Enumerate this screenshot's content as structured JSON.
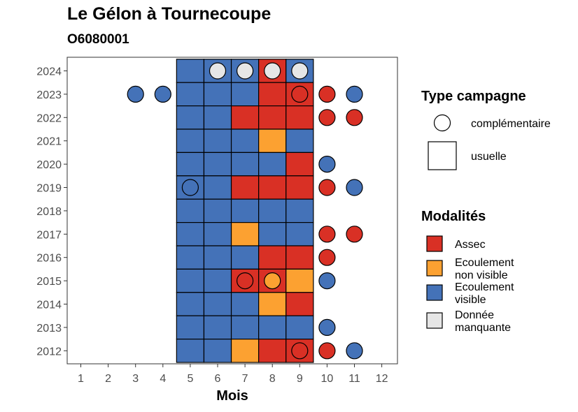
{
  "chart_data": {
    "type": "heatmap",
    "title": "Le Gélon à Tournecoupe",
    "subtitle": "O6080001",
    "xlabel": "Mois",
    "ylabel": "",
    "x_ticks": [
      "1",
      "2",
      "3",
      "4",
      "5",
      "6",
      "7",
      "8",
      "9",
      "10",
      "11",
      "12"
    ],
    "y_ticks": [
      "2024",
      "2023",
      "2022",
      "2021",
      "2020",
      "2019",
      "2018",
      "2017",
      "2016",
      "2015",
      "2014",
      "2013",
      "2012"
    ],
    "xlim": [
      1,
      12
    ],
    "ylim": [
      2012,
      2024
    ],
    "grid": false,
    "colors": {
      "Assec": "#d93025",
      "Ecoulement non visible": "#fca131",
      "Ecoulement visible": "#4472b8",
      "Donnée manquante": "#e6e6e6"
    },
    "cells": [
      {
        "year": 2024,
        "month": 5,
        "status": "Ecoulement visible"
      },
      {
        "year": 2024,
        "month": 6,
        "status": "Ecoulement visible"
      },
      {
        "year": 2024,
        "month": 7,
        "status": "Ecoulement visible"
      },
      {
        "year": 2024,
        "month": 8,
        "status": "Assec"
      },
      {
        "year": 2024,
        "month": 9,
        "status": "Ecoulement visible"
      },
      {
        "year": 2023,
        "month": 5,
        "status": "Ecoulement visible"
      },
      {
        "year": 2023,
        "month": 6,
        "status": "Ecoulement visible"
      },
      {
        "year": 2023,
        "month": 7,
        "status": "Ecoulement visible"
      },
      {
        "year": 2023,
        "month": 8,
        "status": "Assec"
      },
      {
        "year": 2023,
        "month": 9,
        "status": "Assec"
      },
      {
        "year": 2022,
        "month": 5,
        "status": "Ecoulement visible"
      },
      {
        "year": 2022,
        "month": 6,
        "status": "Ecoulement visible"
      },
      {
        "year": 2022,
        "month": 7,
        "status": "Assec"
      },
      {
        "year": 2022,
        "month": 8,
        "status": "Assec"
      },
      {
        "year": 2022,
        "month": 9,
        "status": "Assec"
      },
      {
        "year": 2021,
        "month": 5,
        "status": "Ecoulement visible"
      },
      {
        "year": 2021,
        "month": 6,
        "status": "Ecoulement visible"
      },
      {
        "year": 2021,
        "month": 7,
        "status": "Ecoulement visible"
      },
      {
        "year": 2021,
        "month": 8,
        "status": "Ecoulement non visible"
      },
      {
        "year": 2021,
        "month": 9,
        "status": "Ecoulement visible"
      },
      {
        "year": 2020,
        "month": 5,
        "status": "Ecoulement visible"
      },
      {
        "year": 2020,
        "month": 6,
        "status": "Ecoulement visible"
      },
      {
        "year": 2020,
        "month": 7,
        "status": "Ecoulement visible"
      },
      {
        "year": 2020,
        "month": 8,
        "status": "Ecoulement visible"
      },
      {
        "year": 2020,
        "month": 9,
        "status": "Assec"
      },
      {
        "year": 2019,
        "month": 5,
        "status": "Ecoulement visible"
      },
      {
        "year": 2019,
        "month": 6,
        "status": "Ecoulement visible"
      },
      {
        "year": 2019,
        "month": 7,
        "status": "Assec"
      },
      {
        "year": 2019,
        "month": 8,
        "status": "Assec"
      },
      {
        "year": 2019,
        "month": 9,
        "status": "Assec"
      },
      {
        "year": 2018,
        "month": 5,
        "status": "Ecoulement visible"
      },
      {
        "year": 2018,
        "month": 6,
        "status": "Ecoulement visible"
      },
      {
        "year": 2018,
        "month": 7,
        "status": "Ecoulement visible"
      },
      {
        "year": 2018,
        "month": 8,
        "status": "Ecoulement visible"
      },
      {
        "year": 2018,
        "month": 9,
        "status": "Ecoulement visible"
      },
      {
        "year": 2017,
        "month": 5,
        "status": "Ecoulement visible"
      },
      {
        "year": 2017,
        "month": 6,
        "status": "Ecoulement visible"
      },
      {
        "year": 2017,
        "month": 7,
        "status": "Ecoulement non visible"
      },
      {
        "year": 2017,
        "month": 8,
        "status": "Ecoulement visible"
      },
      {
        "year": 2017,
        "month": 9,
        "status": "Ecoulement visible"
      },
      {
        "year": 2016,
        "month": 5,
        "status": "Ecoulement visible"
      },
      {
        "year": 2016,
        "month": 6,
        "status": "Ecoulement visible"
      },
      {
        "year": 2016,
        "month": 7,
        "status": "Ecoulement visible"
      },
      {
        "year": 2016,
        "month": 8,
        "status": "Assec"
      },
      {
        "year": 2016,
        "month": 9,
        "status": "Assec"
      },
      {
        "year": 2015,
        "month": 5,
        "status": "Ecoulement visible"
      },
      {
        "year": 2015,
        "month": 6,
        "status": "Ecoulement visible"
      },
      {
        "year": 2015,
        "month": 7,
        "status": "Assec"
      },
      {
        "year": 2015,
        "month": 8,
        "status": "Assec"
      },
      {
        "year": 2015,
        "month": 9,
        "status": "Ecoulement non visible"
      },
      {
        "year": 2014,
        "month": 5,
        "status": "Ecoulement visible"
      },
      {
        "year": 2014,
        "month": 6,
        "status": "Ecoulement visible"
      },
      {
        "year": 2014,
        "month": 7,
        "status": "Ecoulement visible"
      },
      {
        "year": 2014,
        "month": 8,
        "status": "Ecoulement non visible"
      },
      {
        "year": 2014,
        "month": 9,
        "status": "Assec"
      },
      {
        "year": 2013,
        "month": 5,
        "status": "Ecoulement visible"
      },
      {
        "year": 2013,
        "month": 6,
        "status": "Ecoulement visible"
      },
      {
        "year": 2013,
        "month": 7,
        "status": "Ecoulement visible"
      },
      {
        "year": 2013,
        "month": 8,
        "status": "Ecoulement visible"
      },
      {
        "year": 2013,
        "month": 9,
        "status": "Ecoulement visible"
      },
      {
        "year": 2012,
        "month": 5,
        "status": "Ecoulement visible"
      },
      {
        "year": 2012,
        "month": 6,
        "status": "Ecoulement visible"
      },
      {
        "year": 2012,
        "month": 7,
        "status": "Ecoulement non visible"
      },
      {
        "year": 2012,
        "month": 8,
        "status": "Assec"
      },
      {
        "year": 2012,
        "month": 9,
        "status": "Assec"
      }
    ],
    "points": [
      {
        "year": 2024,
        "month": 6,
        "status": "Donnée manquante"
      },
      {
        "year": 2024,
        "month": 7,
        "status": "Donnée manquante"
      },
      {
        "year": 2024,
        "month": 8,
        "status": "Donnée manquante"
      },
      {
        "year": 2024,
        "month": 9,
        "status": "Donnée manquante"
      },
      {
        "year": 2023,
        "month": 3,
        "status": "Ecoulement visible"
      },
      {
        "year": 2023,
        "month": 4,
        "status": "Ecoulement visible"
      },
      {
        "year": 2023,
        "month": 9,
        "status": "Assec"
      },
      {
        "year": 2023,
        "month": 10,
        "status": "Assec"
      },
      {
        "year": 2023,
        "month": 11,
        "status": "Ecoulement visible"
      },
      {
        "year": 2022,
        "month": 10,
        "status": "Assec"
      },
      {
        "year": 2022,
        "month": 11,
        "status": "Assec"
      },
      {
        "year": 2020,
        "month": 10,
        "status": "Ecoulement visible"
      },
      {
        "year": 2019,
        "month": 5,
        "status": "Ecoulement visible"
      },
      {
        "year": 2019,
        "month": 10,
        "status": "Assec"
      },
      {
        "year": 2019,
        "month": 11,
        "status": "Ecoulement visible"
      },
      {
        "year": 2017,
        "month": 10,
        "status": "Assec"
      },
      {
        "year": 2017,
        "month": 11,
        "status": "Assec"
      },
      {
        "year": 2016,
        "month": 10,
        "status": "Assec"
      },
      {
        "year": 2015,
        "month": 7,
        "status": "Assec"
      },
      {
        "year": 2015,
        "month": 8,
        "status": "Ecoulement non visible"
      },
      {
        "year": 2015,
        "month": 10,
        "status": "Ecoulement visible"
      },
      {
        "year": 2013,
        "month": 10,
        "status": "Ecoulement visible"
      },
      {
        "year": 2012,
        "month": 9,
        "status": "Assec"
      },
      {
        "year": 2012,
        "month": 10,
        "status": "Assec"
      },
      {
        "year": 2012,
        "month": 11,
        "status": "Ecoulement visible"
      }
    ],
    "legend_shape": {
      "title": "Type campagne",
      "items": [
        {
          "label": "complémentaire",
          "shape": "circle"
        },
        {
          "label": "usuelle",
          "shape": "square"
        }
      ]
    },
    "legend_fill": {
      "title": "Modalités",
      "items": [
        {
          "lines": [
            "Assec"
          ],
          "color": "#d93025"
        },
        {
          "lines": [
            "Ecoulement",
            "non visible"
          ],
          "color": "#fca131"
        },
        {
          "lines": [
            "Ecoulement",
            "visible"
          ],
          "color": "#4472b8"
        },
        {
          "lines": [
            "Donnée",
            "manquante"
          ],
          "color": "#e6e6e6"
        }
      ]
    },
    "legend_position": "right"
  }
}
